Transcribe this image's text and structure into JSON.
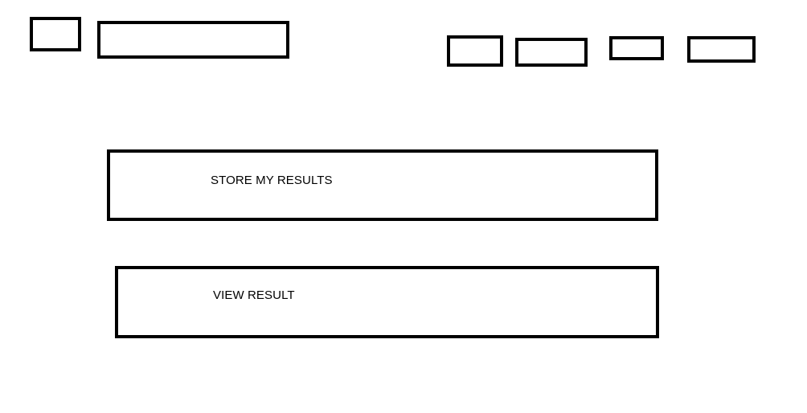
{
  "main": {
    "store_results_label": "STORE MY RESULTS",
    "view_result_label": "VIEW RESULT"
  }
}
